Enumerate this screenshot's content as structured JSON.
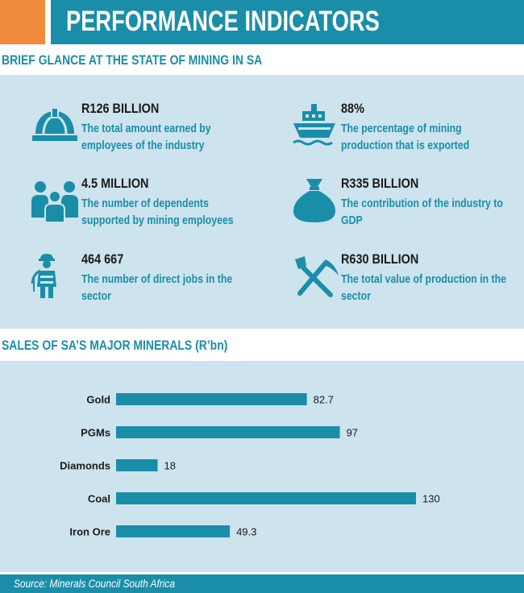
{
  "header": {
    "title": "PERFORMANCE INDICATORS",
    "accent_color": "#f08b3d",
    "brand_color": "#1a8ea8"
  },
  "glance": {
    "title": "BRIEF GLANCE AT THE STATE OF MINING IN SA",
    "stats": [
      {
        "icon": "hard-hat-icon",
        "value": "R126 BILLION",
        "desc": "The total amount earned by employees of the industry"
      },
      {
        "icon": "ship-icon",
        "value": "88%",
        "desc": "The percentage of mining production that is exported"
      },
      {
        "icon": "family-icon",
        "value": "4.5 MILLION",
        "desc": "The number of dependents supported by mining employees"
      },
      {
        "icon": "money-bag-icon",
        "value": "R335 BILLION",
        "desc": "The contribution of the industry to GDP"
      },
      {
        "icon": "miner-icon",
        "value": "464 667",
        "desc": "The number of direct jobs in the sector"
      },
      {
        "icon": "pick-shovel-icon",
        "value": "R630 BILLION",
        "desc": "The total value of production in the sector"
      }
    ]
  },
  "chart_data": {
    "type": "bar",
    "orientation": "horizontal",
    "title": "SALES OF SA’S MAJOR MINERALS (R’bn)",
    "categories": [
      "Gold",
      "PGMs",
      "Diamonds",
      "Coal",
      "Iron Ore"
    ],
    "values": [
      82.7,
      97,
      18,
      130,
      49.3
    ],
    "value_labels": [
      "82.7",
      "97",
      "18",
      "130",
      "49.3"
    ],
    "bar_color": "#1a8ea8",
    "xlim": [
      0,
      130
    ],
    "grid": false,
    "legend": "none"
  },
  "footer": {
    "source": "Source: Minerals Council South Africa"
  }
}
